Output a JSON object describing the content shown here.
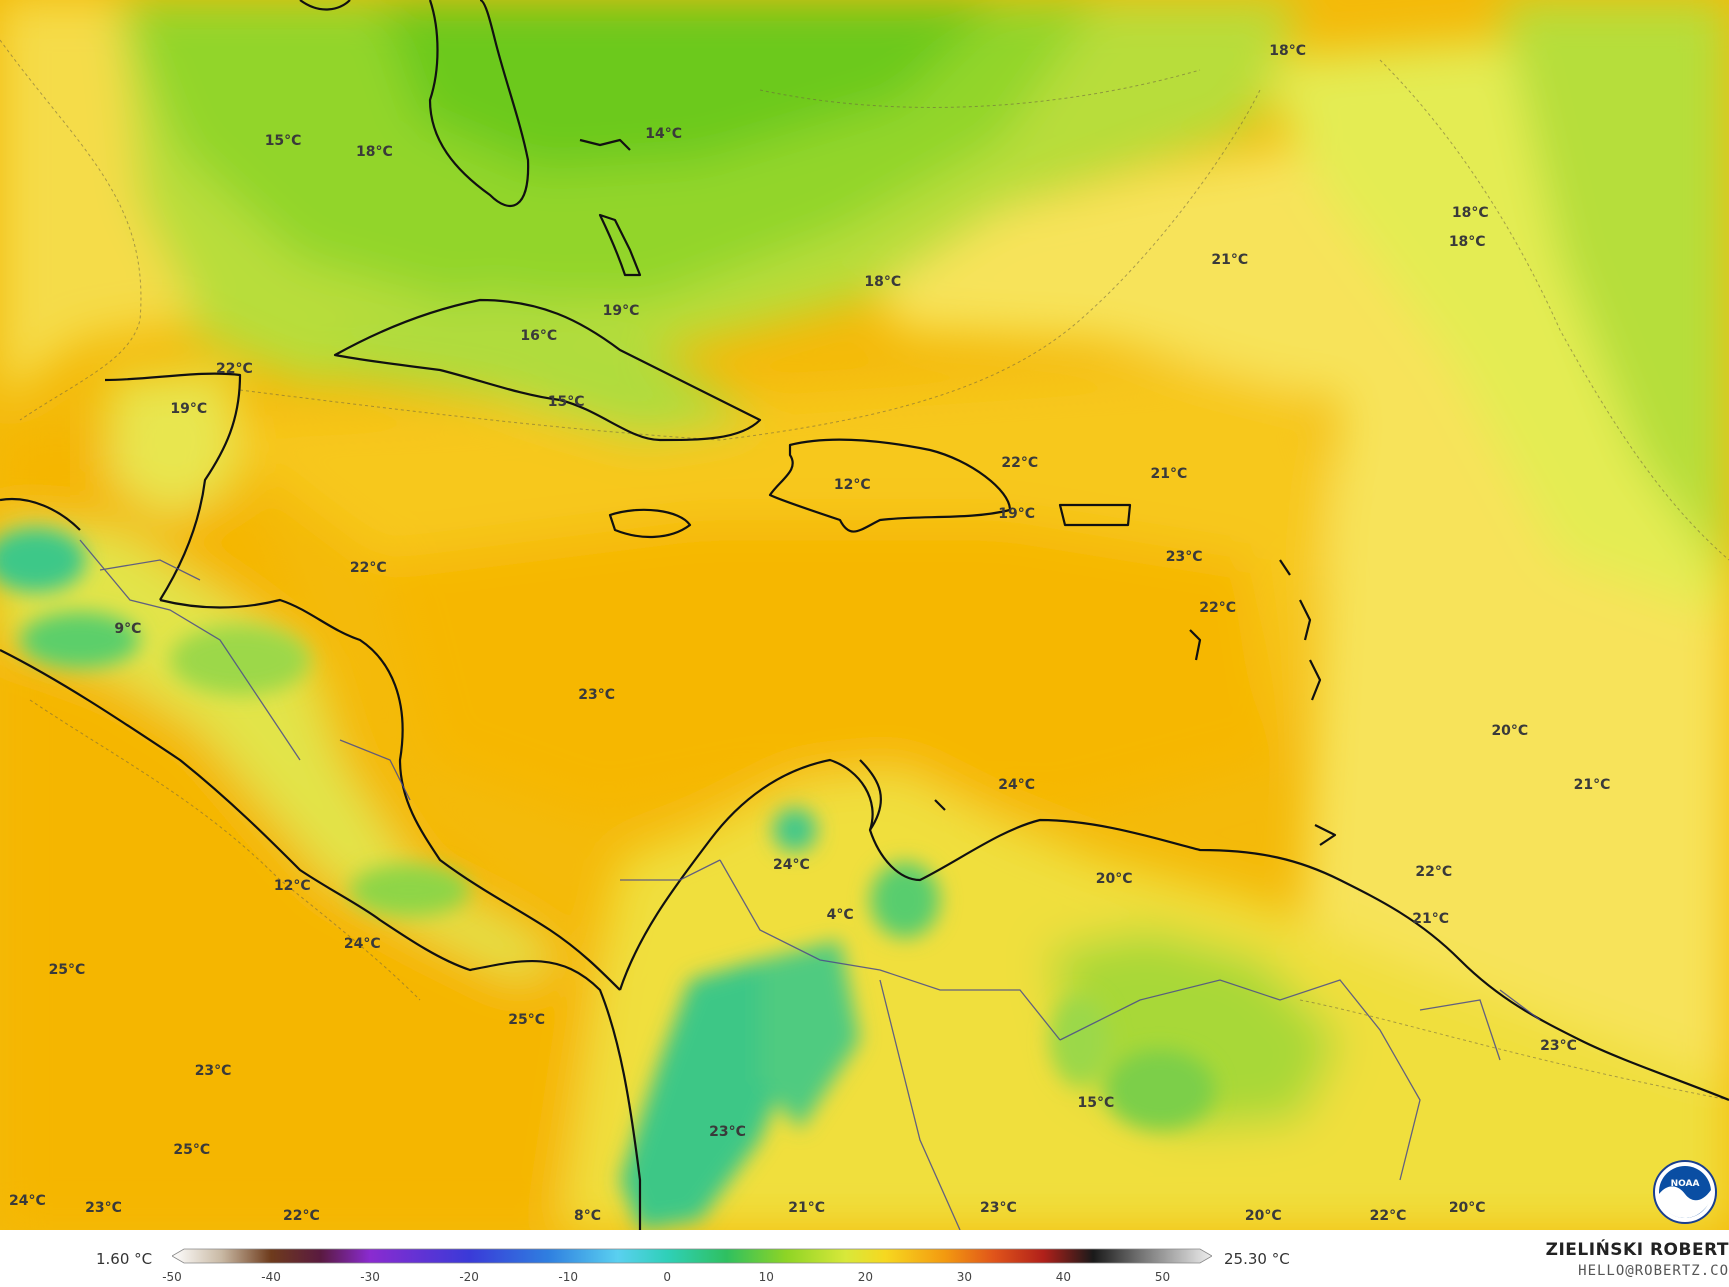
{
  "colors": {
    "ocean_hot": "#f6b800",
    "ocean_warm": "#f9cf2a",
    "mid_yellow": "#fbe55a",
    "pale_yellow": "#f5ee6a",
    "light_green": "#c6e44a",
    "green": "#86d325",
    "deep_green": "#5fc91c",
    "teal": "#2fc49a",
    "coast": "#111111",
    "border": "#4a4a8a"
  },
  "temperature_labels": [
    {
      "text": "18°C",
      "lon": -62.5,
      "lat": 30.6
    },
    {
      "text": "15°C",
      "lon": -95.5,
      "lat": 28.1
    },
    {
      "text": "18°C",
      "lon": -92.5,
      "lat": 27.8
    },
    {
      "text": "14°C",
      "lon": -83.0,
      "lat": 28.3
    },
    {
      "text": "18°C",
      "lon": -56.5,
      "lat": 26.1
    },
    {
      "text": "18°C",
      "lon": -56.6,
      "lat": 25.3
    },
    {
      "text": "21°C",
      "lon": -64.4,
      "lat": 24.8
    },
    {
      "text": "18°C",
      "lon": -75.8,
      "lat": 24.2
    },
    {
      "text": "19°C",
      "lon": -84.4,
      "lat": 23.4
    },
    {
      "text": "16°C",
      "lon": -87.1,
      "lat": 22.7
    },
    {
      "text": "22°C",
      "lon": -97.1,
      "lat": 21.8
    },
    {
      "text": "19°C",
      "lon": -98.6,
      "lat": 20.7
    },
    {
      "text": "15°C",
      "lon": -86.2,
      "lat": 20.9
    },
    {
      "text": "22°C",
      "lon": -71.3,
      "lat": 19.2
    },
    {
      "text": "21°C",
      "lon": -66.4,
      "lat": 18.9
    },
    {
      "text": "12°C",
      "lon": -76.8,
      "lat": 18.6
    },
    {
      "text": "19°C",
      "lon": -71.4,
      "lat": 17.8
    },
    {
      "text": "23°C",
      "lon": -65.9,
      "lat": 16.6
    },
    {
      "text": "22°C",
      "lon": -92.7,
      "lat": 16.3
    },
    {
      "text": "22°C",
      "lon": -64.8,
      "lat": 15.2
    },
    {
      "text": "9°C",
      "lon": -100.6,
      "lat": 14.6
    },
    {
      "text": "23°C",
      "lon": -85.2,
      "lat": 12.8
    },
    {
      "text": "20°C",
      "lon": -55.2,
      "lat": 11.8
    },
    {
      "text": "24°C",
      "lon": -71.4,
      "lat": 10.3
    },
    {
      "text": "21°C",
      "lon": -52.5,
      "lat": 10.3
    },
    {
      "text": "24°C",
      "lon": -78.8,
      "lat": 8.1
    },
    {
      "text": "20°C",
      "lon": -68.2,
      "lat": 7.7
    },
    {
      "text": "22°C",
      "lon": -57.7,
      "lat": 7.9
    },
    {
      "text": "12°C",
      "lon": -95.2,
      "lat": 7.5
    },
    {
      "text": "4°C",
      "lon": -77.2,
      "lat": 6.7
    },
    {
      "text": "21°C",
      "lon": -57.8,
      "lat": 6.6
    },
    {
      "text": "24°C",
      "lon": -92.9,
      "lat": 5.9
    },
    {
      "text": "25°C",
      "lon": -102.6,
      "lat": 5.2
    },
    {
      "text": "25°C",
      "lon": -87.5,
      "lat": 3.8
    },
    {
      "text": "23°C",
      "lon": -53.6,
      "lat": 3.1
    },
    {
      "text": "23°C",
      "lon": -97.8,
      "lat": 2.4
    },
    {
      "text": "15°C",
      "lon": -68.8,
      "lat": 1.5
    },
    {
      "text": "23°C",
      "lon": -80.9,
      "lat": 0.7
    },
    {
      "text": "25°C",
      "lon": -98.5,
      "lat": 0.2
    },
    {
      "text": "24°C",
      "lon": -103.9,
      "lat": -1.2
    },
    {
      "text": "23°C",
      "lon": -101.4,
      "lat": -1.4
    },
    {
      "text": "22°C",
      "lon": -94.9,
      "lat": -1.6
    },
    {
      "text": "8°C",
      "lon": -85.5,
      "lat": -1.6
    },
    {
      "text": "21°C",
      "lon": -78.3,
      "lat": -1.4
    },
    {
      "text": "23°C",
      "lon": -72.0,
      "lat": -1.4
    },
    {
      "text": "20°C",
      "lon": -63.3,
      "lat": -1.6
    },
    {
      "text": "22°C",
      "lon": -59.2,
      "lat": -1.6
    },
    {
      "text": "20°C",
      "lon": -56.6,
      "lat": -1.4
    }
  ],
  "legend": {
    "min_label": "1.60 °C",
    "max_label": "25.30 °C",
    "scale_min": -50,
    "scale_max": 55,
    "ticks": [
      "-50",
      "-40",
      "-30",
      "-20",
      "-10",
      "0",
      "10",
      "20",
      "30",
      "40",
      "50"
    ],
    "stops": [
      {
        "t": -50,
        "color": "#ffffff"
      },
      {
        "t": -45,
        "color": "#c9b9a4"
      },
      {
        "t": -40,
        "color": "#6e3b1c"
      },
      {
        "t": -35,
        "color": "#5a1a40"
      },
      {
        "t": -30,
        "color": "#8a2bd0"
      },
      {
        "t": -20,
        "color": "#3a3ad8"
      },
      {
        "t": -12,
        "color": "#2f7fe0"
      },
      {
        "t": -5,
        "color": "#5ad0f0"
      },
      {
        "t": 0,
        "color": "#2fd0b8"
      },
      {
        "t": 6,
        "color": "#2fc060"
      },
      {
        "t": 12,
        "color": "#8ed425"
      },
      {
        "t": 18,
        "color": "#d8e83a"
      },
      {
        "t": 22,
        "color": "#f6d820"
      },
      {
        "t": 28,
        "color": "#f39a10"
      },
      {
        "t": 33,
        "color": "#e0541a"
      },
      {
        "t": 38,
        "color": "#b0201a"
      },
      {
        "t": 43,
        "color": "#1a1a1a"
      },
      {
        "t": 48,
        "color": "#777777"
      },
      {
        "t": 55,
        "color": "#eeeeee"
      }
    ]
  },
  "author": "ZIELIŃSKI ROBERT",
  "email": "HELLO@ROBERTZ.CO",
  "logo": {
    "text": "NOAA",
    "icon": "noaa-logo-icon"
  }
}
